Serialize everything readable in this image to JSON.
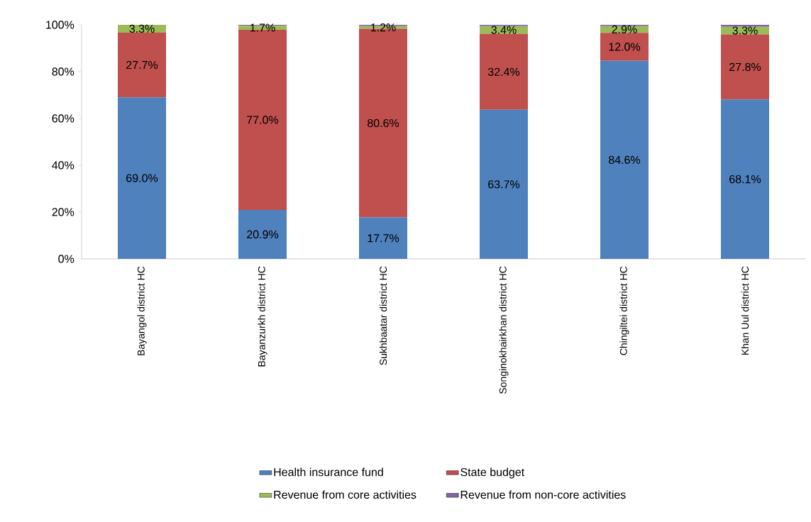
{
  "chart_data": {
    "type": "bar",
    "stacked": true,
    "categories": [
      "Bayangol district HC",
      "Bayanzurkh  district HC",
      "Sukhbaatar district HC",
      "Songinokhairkhan district HC",
      "Chingiltei district HC",
      "Khan Uul district HC"
    ],
    "series": [
      {
        "name": "Health insurance fund",
        "color": "#4f81bd",
        "values": [
          69.0,
          20.9,
          17.7,
          63.7,
          84.6,
          68.1
        ],
        "value_labels": [
          "69.0%",
          "20.9%",
          "17.7%",
          "63.7%",
          "84.6%",
          "68.1%"
        ]
      },
      {
        "name": "State budget",
        "color": "#c0504d",
        "values": [
          27.7,
          77.0,
          80.6,
          32.4,
          12.0,
          27.8
        ],
        "value_labels": [
          "27.7%",
          "77.0%",
          "80.6%",
          "32.4%",
          "12.0%",
          "27.8%"
        ]
      },
      {
        "name": "Revenue from core activities",
        "color": "#9bbb59",
        "values": [
          3.3,
          1.7,
          1.2,
          3.4,
          2.9,
          3.3
        ],
        "value_labels": [
          "3.3%",
          "1.7%",
          "1.2%",
          "3.4%",
          "2.9%",
          "3.3%"
        ]
      },
      {
        "name": "Revenue from non-core activities",
        "color": "#8064a2",
        "values": [
          0,
          0.4,
          0.5,
          0.5,
          0.5,
          0.8
        ]
      }
    ],
    "ylim": [
      0,
      100
    ],
    "yticks": [
      {
        "value": 0,
        "label": "0%"
      },
      {
        "value": 20,
        "label": "20%"
      },
      {
        "value": 40,
        "label": "40%"
      },
      {
        "value": 60,
        "label": "60%"
      },
      {
        "value": 80,
        "label": "80%"
      },
      {
        "value": 100,
        "label": "100%"
      }
    ],
    "grid": false,
    "legend": "bottom"
  }
}
